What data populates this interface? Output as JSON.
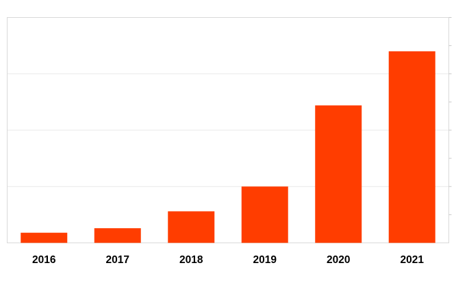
{
  "chart_data": {
    "type": "bar",
    "title": "",
    "xlabel": "",
    "ylabel": "",
    "categories": [
      "2016",
      "2017",
      "2018",
      "2019",
      "2020",
      "2021"
    ],
    "values": [
      4.5,
      6.5,
      14,
      25,
      61,
      85
    ],
    "ylim": [
      0,
      100
    ],
    "gridline_step": 25,
    "minor_tick_step": 12.5,
    "grid": true,
    "legend_position": "none",
    "y_tick_labels_visible": false,
    "colors": {
      "bar": "#ff3d00",
      "grid": "#e9e9e9",
      "plot_border": "#d9d9d9",
      "minor_tick": "#c9c9c9",
      "axis_label": "#000000",
      "background": "#ffffff"
    }
  }
}
